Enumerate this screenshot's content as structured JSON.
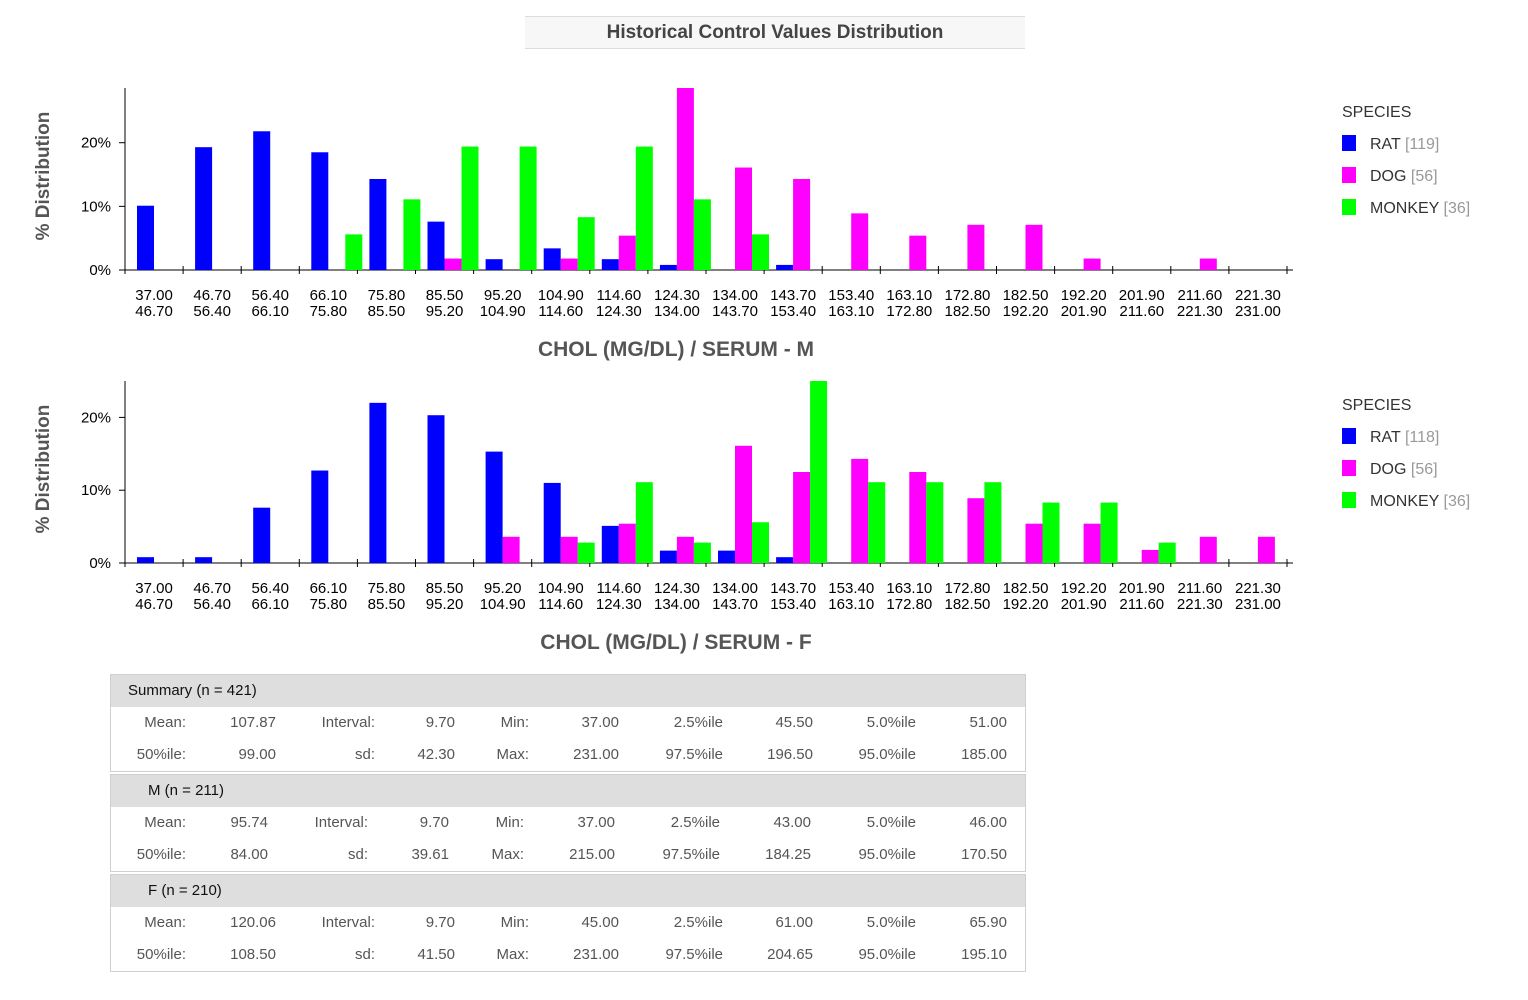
{
  "title": "Historical Control Values Distribution",
  "colors": {
    "RAT": "#0000ff",
    "DOG": "#ff00ff",
    "MONKEY": "#00ff00"
  },
  "bins": [
    [
      "37.00",
      "46.70"
    ],
    [
      "46.70",
      "56.40"
    ],
    [
      "56.40",
      "66.10"
    ],
    [
      "66.10",
      "75.80"
    ],
    [
      "75.80",
      "85.50"
    ],
    [
      "85.50",
      "95.20"
    ],
    [
      "95.20",
      "104.90"
    ],
    [
      "104.90",
      "114.60"
    ],
    [
      "114.60",
      "124.30"
    ],
    [
      "124.30",
      "134.00"
    ],
    [
      "134.00",
      "143.70"
    ],
    [
      "143.70",
      "153.40"
    ],
    [
      "153.40",
      "163.10"
    ],
    [
      "163.10",
      "172.80"
    ],
    [
      "172.80",
      "182.50"
    ],
    [
      "182.50",
      "192.20"
    ],
    [
      "192.20",
      "201.90"
    ],
    [
      "201.90",
      "211.60"
    ],
    [
      "211.60",
      "221.30"
    ],
    [
      "221.30",
      "231.00"
    ]
  ],
  "chart_data": [
    {
      "type": "bar",
      "title": "",
      "xlabel": "CHOL (MG/DL) / SERUM - M",
      "ylabel": "% Distribution",
      "ylim": [
        0,
        28.6
      ],
      "yticks": [
        "0%",
        "10%",
        "20%"
      ],
      "ytick_values": [
        0,
        10,
        20
      ],
      "legend_title": "SPECIES",
      "legend_position": "right",
      "series": [
        {
          "name": "RAT",
          "count": "[119]",
          "values": [
            10.1,
            19.3,
            21.8,
            18.5,
            14.3,
            7.6,
            1.7,
            3.4,
            1.7,
            0.8,
            0,
            0.8,
            0,
            0,
            0,
            0,
            0,
            0,
            0,
            0
          ]
        },
        {
          "name": "DOG",
          "count": "[56]",
          "values": [
            0,
            0,
            0,
            0,
            0,
            1.8,
            0,
            1.8,
            5.4,
            28.6,
            16.1,
            14.3,
            8.9,
            5.4,
            7.1,
            7.1,
            1.8,
            0,
            1.8,
            0
          ]
        },
        {
          "name": "MONKEY",
          "count": "[36]",
          "values": [
            0,
            0,
            0,
            5.6,
            11.1,
            19.4,
            19.4,
            8.3,
            19.4,
            11.1,
            5.6,
            0,
            0,
            0,
            0,
            0,
            0,
            0,
            0,
            0
          ]
        }
      ]
    },
    {
      "type": "bar",
      "title": "",
      "xlabel": "CHOL (MG/DL) / SERUM - F",
      "ylabel": "% Distribution",
      "ylim": [
        0,
        25.0
      ],
      "yticks": [
        "0%",
        "10%",
        "20%"
      ],
      "ytick_values": [
        0,
        10,
        20
      ],
      "legend_title": "SPECIES",
      "legend_position": "right",
      "series": [
        {
          "name": "RAT",
          "count": "[118]",
          "values": [
            0.8,
            0.8,
            7.6,
            12.7,
            22.0,
            20.3,
            15.3,
            11.0,
            5.1,
            1.7,
            1.7,
            0.8,
            0,
            0,
            0,
            0,
            0,
            0,
            0,
            0
          ]
        },
        {
          "name": "DOG",
          "count": "[56]",
          "values": [
            0,
            0,
            0,
            0,
            0,
            0,
            3.6,
            3.6,
            5.4,
            3.6,
            16.1,
            12.5,
            14.3,
            12.5,
            8.9,
            5.4,
            5.4,
            1.8,
            3.6,
            3.6
          ]
        },
        {
          "name": "MONKEY",
          "count": "[36]",
          "values": [
            0,
            0,
            0,
            0,
            0,
            0,
            0,
            2.8,
            11.1,
            2.8,
            5.6,
            25.0,
            11.1,
            11.1,
            11.1,
            8.3,
            8.3,
            2.8,
            0,
            0
          ]
        }
      ]
    }
  ],
  "stats": [
    {
      "header": "Summary (n = 421)",
      "rows": [
        [
          "Mean:",
          "107.87",
          "Interval:",
          "9.70",
          "Min:",
          "37.00",
          "2.5%ile",
          "45.50",
          "5.0%ile",
          "51.00"
        ],
        [
          "50%ile:",
          "99.00",
          "sd:",
          "42.30",
          "Max:",
          "231.00",
          "97.5%ile",
          "196.50",
          "95.0%ile",
          "185.00"
        ]
      ]
    },
    {
      "header": "M (n = 211)",
      "rows": [
        [
          "Mean:",
          "95.74",
          "Interval:",
          "9.70",
          "Min:",
          "37.00",
          "2.5%ile",
          "43.00",
          "5.0%ile",
          "46.00"
        ],
        [
          "50%ile:",
          "84.00",
          "sd:",
          "39.61",
          "Max:",
          "215.00",
          "97.5%ile",
          "184.25",
          "95.0%ile",
          "170.50"
        ]
      ]
    },
    {
      "header": "F (n = 210)",
      "rows": [
        [
          "Mean:",
          "120.06",
          "Interval:",
          "9.70",
          "Min:",
          "45.00",
          "2.5%ile",
          "61.00",
          "5.0%ile",
          "65.90"
        ],
        [
          "50%ile:",
          "108.50",
          "sd:",
          "41.50",
          "Max:",
          "231.00",
          "97.5%ile",
          "204.65",
          "95.0%ile",
          "195.10"
        ]
      ]
    }
  ]
}
